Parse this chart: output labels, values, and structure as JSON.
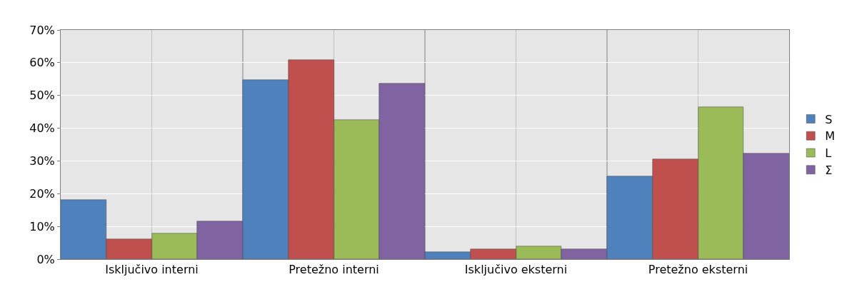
{
  "chart_data": {
    "type": "bar",
    "categories": [
      "Isključivo interni",
      "Pretežno interni",
      "Isključivo eksterni",
      "Pretežno eksterni"
    ],
    "series": [
      {
        "name": "S",
        "color": "#4f81bd",
        "values": [
          18.0,
          54.7,
          2.2,
          25.2
        ]
      },
      {
        "name": "M",
        "color": "#c0504d",
        "values": [
          6.1,
          60.8,
          3.1,
          30.6
        ]
      },
      {
        "name": "L",
        "color": "#9bbb59",
        "values": [
          7.9,
          42.5,
          3.9,
          46.4
        ]
      },
      {
        "name": "Σ",
        "color": "#8064a2",
        "values": [
          11.6,
          53.6,
          3.1,
          32.2
        ]
      }
    ],
    "ylim": [
      0,
      70
    ],
    "yticks": [
      {
        "value": 0,
        "label": "0%"
      },
      {
        "value": 10,
        "label": "10%"
      },
      {
        "value": 20,
        "label": "20%"
      },
      {
        "value": 30,
        "label": "30%"
      },
      {
        "value": 40,
        "label": "40%"
      },
      {
        "value": 50,
        "label": "50%"
      },
      {
        "value": 60,
        "label": "60%"
      },
      {
        "value": 70,
        "label": "70%"
      }
    ],
    "grid": true,
    "legend": "right"
  }
}
